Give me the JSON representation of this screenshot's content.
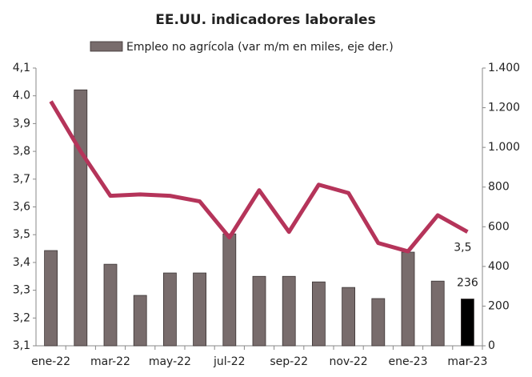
{
  "chart_data": {
    "type": "bar_line",
    "title": "EE.UU. indicadores laborales",
    "categories": [
      "ene-22",
      null,
      "mar-22",
      null,
      "may-22",
      null,
      "jul-22",
      null,
      "sep-22",
      null,
      "nov-22",
      null,
      "ene-23",
      null,
      "mar-23"
    ],
    "series": [
      {
        "name": "Empleo no agrícola (var m/m en miles, eje der.)",
        "type": "bar",
        "axis": "y2",
        "color": "#786c6c",
        "colors": [
          "#786c6c",
          "#786c6c",
          "#786c6c",
          "#786c6c",
          "#786c6c",
          "#786c6c",
          "#786c6c",
          "#786c6c",
          "#786c6c",
          "#786c6c",
          "#786c6c",
          "#786c6c",
          "#786c6c",
          "#786c6c",
          "#000000"
        ],
        "values": [
          480,
          1290,
          411,
          254,
          367,
          367,
          564,
          350,
          350,
          322,
          294,
          238,
          472,
          326,
          236
        ],
        "value_labels": [
          null,
          null,
          null,
          null,
          null,
          null,
          null,
          null,
          null,
          null,
          null,
          null,
          null,
          null,
          "236"
        ]
      },
      {
        "type": "line",
        "axis": "y",
        "color": "#b5345a",
        "values": [
          3.98,
          3.8,
          3.64,
          3.645,
          3.64,
          3.62,
          3.49,
          3.66,
          3.51,
          3.68,
          3.65,
          3.47,
          3.44,
          3.57,
          3.51
        ],
        "value_labels": [
          null,
          null,
          null,
          null,
          null,
          null,
          null,
          null,
          null,
          null,
          null,
          null,
          null,
          null,
          "3,5"
        ]
      }
    ],
    "ylim": [
      3.1,
      4.1
    ],
    "yticks": [
      {
        "value": 3.1,
        "label": "3,1"
      },
      {
        "value": 3.2,
        "label": "3,2"
      },
      {
        "value": 3.3,
        "label": "3,3"
      },
      {
        "value": 3.4,
        "label": "3,4"
      },
      {
        "value": 3.5,
        "label": "3,5"
      },
      {
        "value": 3.6,
        "label": "3,6"
      },
      {
        "value": 3.7,
        "label": "3,7"
      },
      {
        "value": 3.8,
        "label": "3,8"
      },
      {
        "value": 3.9,
        "label": "3,9"
      },
      {
        "value": 4.0,
        "label": "4.0"
      },
      {
        "value": 4.1,
        "label": "4,1"
      }
    ],
    "y2lim": [
      0,
      1400
    ],
    "y2ticks": [
      0,
      200,
      400,
      600,
      800,
      {
        "value": 1000,
        "label": "1.000"
      },
      {
        "value": 1200,
        "label": "1.200"
      },
      {
        "value": 1400,
        "label": "1.400"
      }
    ],
    "grid": false,
    "legend": "top"
  }
}
